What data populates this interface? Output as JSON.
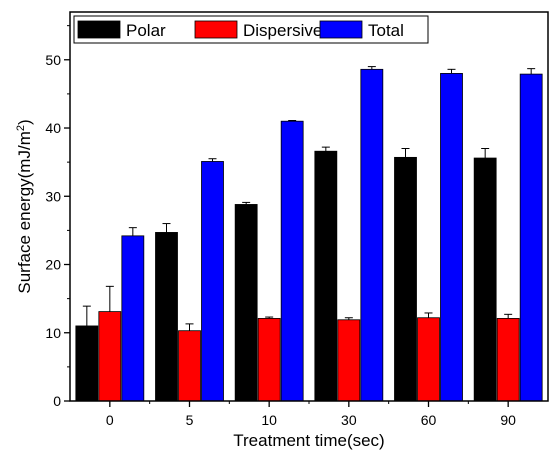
{
  "chart_data": {
    "type": "bar",
    "xlabel": "Treatment time(sec)",
    "ylabel_main": "Surface energy(mJ/m",
    "ylabel_sup": "2",
    "ylabel_close": ")",
    "categories": [
      "0",
      "5",
      "10",
      "30",
      "60",
      "90"
    ],
    "ylim": [
      0,
      57
    ],
    "yticks": [
      0,
      10,
      20,
      30,
      40,
      50
    ],
    "grid": false,
    "legend_position": "top-left",
    "series": [
      {
        "name": "Polar",
        "color": "#000000",
        "values": [
          11.0,
          24.7,
          28.8,
          36.6,
          35.7,
          35.6
        ],
        "errors": [
          2.9,
          1.3,
          0.3,
          0.6,
          1.3,
          1.4
        ]
      },
      {
        "name": "Dispersive",
        "color": "#ff0000",
        "values": [
          13.1,
          10.3,
          12.1,
          11.9,
          12.2,
          12.1
        ],
        "errors": [
          3.7,
          1.0,
          0.2,
          0.3,
          0.7,
          0.6
        ]
      },
      {
        "name": "Total",
        "color": "#0000ff",
        "values": [
          24.2,
          35.1,
          41.0,
          48.6,
          48.0,
          47.9
        ],
        "errors": [
          1.2,
          0.4,
          0.1,
          0.4,
          0.6,
          0.8
        ]
      }
    ]
  }
}
